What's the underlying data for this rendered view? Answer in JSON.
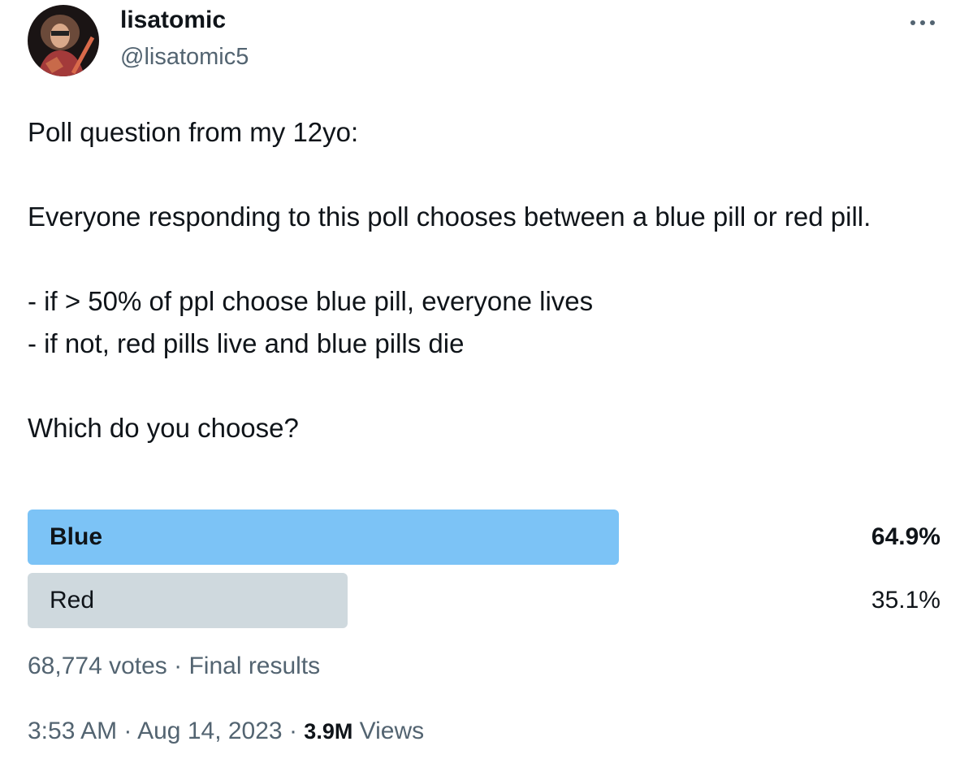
{
  "author": {
    "name": "lisatomic",
    "handle": "@lisatomic5"
  },
  "body": [
    "Poll question from my 12yo:",
    "Everyone responding to this poll chooses between a blue pill or red pill.",
    "- if > 50% of ppl choose blue pill, everyone lives",
    "- if not, red pills live and blue pills die",
    "Which do you choose?"
  ],
  "poll": {
    "options": [
      {
        "label": "Blue",
        "value": 64.9,
        "value_label": "64.9%",
        "color": "#7cc3f6",
        "winner": true
      },
      {
        "label": "Red",
        "value": 35.1,
        "value_label": "35.1%",
        "color": "#cfd9de",
        "winner": false
      }
    ],
    "summary": "68,774 votes · Final results"
  },
  "footer": {
    "time": "3:53 AM",
    "separator": "·",
    "date": "Aug 14, 2023",
    "views_count": "3.9M",
    "views_label": "Views"
  }
}
